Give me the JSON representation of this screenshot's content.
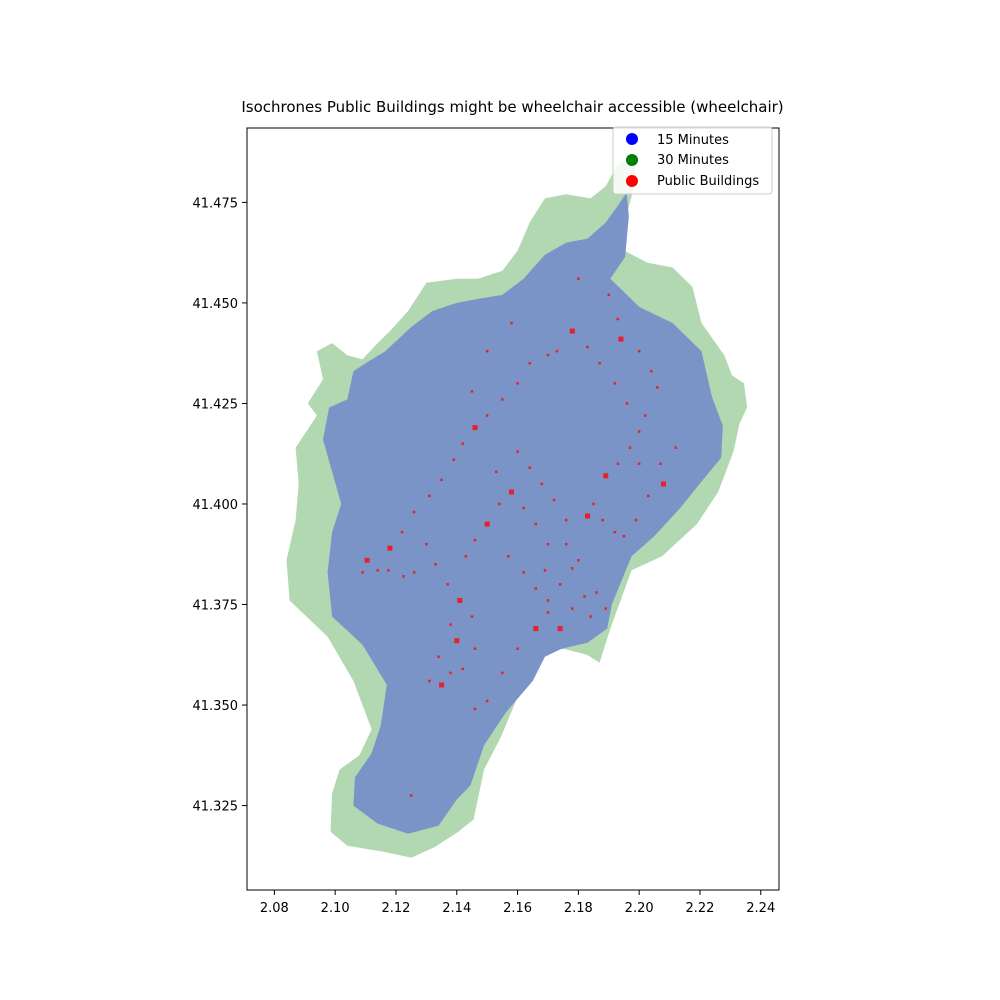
{
  "chart_data": {
    "type": "map",
    "title": "Isochrones Public Buildings might be wheelchair accessible (wheelchair)",
    "xlim": [
      2.071,
      2.246
    ],
    "ylim": [
      41.304,
      41.4935
    ],
    "xticks": [
      2.08,
      2.1,
      2.12,
      2.14,
      2.16,
      2.18,
      2.2,
      2.22,
      2.24
    ],
    "xtick_labels": [
      "2.08",
      "2.10",
      "2.12",
      "2.14",
      "2.16",
      "2.18",
      "2.20",
      "2.22",
      "2.24"
    ],
    "yticks": [
      41.325,
      41.35,
      41.375,
      41.4,
      41.425,
      41.45,
      41.475
    ],
    "ytick_labels": [
      "41.325",
      "41.350",
      "41.375",
      "41.400",
      "41.425",
      "41.450",
      "41.475"
    ],
    "grid": false,
    "legend_position": "upper-right",
    "legend": [
      {
        "label": "15 Minutes",
        "color": "#0000ff"
      },
      {
        "label": "30 Minutes",
        "color": "#008000"
      },
      {
        "label": "Public Buildings",
        "color": "#ff0000"
      }
    ],
    "isochrone_30": {
      "name": "30 Minutes",
      "color": "#b2d8b2",
      "polygon": [
        [
          2.1927,
          41.4842
        ],
        [
          2.1956,
          41.4858
        ],
        [
          2.1985,
          41.4845
        ],
        [
          2.1986,
          41.4795
        ],
        [
          2.1956,
          41.4712
        ],
        [
          2.1946,
          41.4632
        ],
        [
          2.2027,
          41.46
        ],
        [
          2.211,
          41.4588
        ],
        [
          2.2175,
          41.454
        ],
        [
          2.2205,
          41.445
        ],
        [
          2.228,
          41.437
        ],
        [
          2.2305,
          41.432
        ],
        [
          2.2345,
          41.43
        ],
        [
          2.2355,
          41.424
        ],
        [
          2.233,
          41.42
        ],
        [
          2.231,
          41.413
        ],
        [
          2.226,
          41.403
        ],
        [
          2.219,
          41.395
        ],
        [
          2.2075,
          41.387
        ],
        [
          2.1975,
          41.3835
        ],
        [
          2.1905,
          41.369
        ],
        [
          2.187,
          41.3605
        ],
        [
          2.1828,
          41.3625
        ],
        [
          2.175,
          41.364
        ],
        [
          2.169,
          41.363
        ],
        [
          2.16,
          41.352
        ],
        [
          2.1545,
          41.342
        ],
        [
          2.149,
          41.334
        ],
        [
          2.1455,
          41.3215
        ],
        [
          2.1405,
          41.3185
        ],
        [
          2.133,
          41.3148
        ],
        [
          2.125,
          41.312
        ],
        [
          2.116,
          41.3135
        ],
        [
          2.104,
          41.315
        ],
        [
          2.0985,
          41.3185
        ],
        [
          2.099,
          41.328
        ],
        [
          2.1015,
          41.334
        ],
        [
          2.108,
          41.3375
        ],
        [
          2.112,
          41.344
        ],
        [
          2.106,
          41.356
        ],
        [
          2.0975,
          41.367
        ],
        [
          2.085,
          41.376
        ],
        [
          2.084,
          41.386
        ],
        [
          2.087,
          41.396
        ],
        [
          2.088,
          41.405
        ],
        [
          2.087,
          41.414
        ],
        [
          2.094,
          41.422
        ],
        [
          2.091,
          41.425
        ],
        [
          2.096,
          41.431
        ],
        [
          2.094,
          41.438
        ],
        [
          2.099,
          41.44
        ],
        [
          2.104,
          41.437
        ],
        [
          2.109,
          41.436
        ],
        [
          2.114,
          41.44
        ],
        [
          2.118,
          41.443
        ],
        [
          2.124,
          41.448
        ],
        [
          2.13,
          41.455
        ],
        [
          2.14,
          41.456
        ],
        [
          2.147,
          41.456
        ],
        [
          2.155,
          41.458
        ],
        [
          2.16,
          41.463
        ],
        [
          2.164,
          41.47
        ],
        [
          2.169,
          41.476
        ],
        [
          2.176,
          41.477
        ],
        [
          2.184,
          41.476
        ],
        [
          2.189,
          41.479
        ],
        [
          2.1927,
          41.4842
        ]
      ]
    },
    "isochrone_15": {
      "name": "15 Minutes",
      "color": "#7b94c8",
      "polygon": [
        [
          2.1933,
          41.4745
        ],
        [
          2.1959,
          41.4775
        ],
        [
          2.1966,
          41.4715
        ],
        [
          2.1954,
          41.4615
        ],
        [
          2.1905,
          41.456
        ],
        [
          2.196,
          41.452
        ],
        [
          2.2,
          41.449
        ],
        [
          2.211,
          41.445
        ],
        [
          2.2205,
          41.438
        ],
        [
          2.224,
          41.4265
        ],
        [
          2.2275,
          41.4195
        ],
        [
          2.227,
          41.4115
        ],
        [
          2.221,
          41.406
        ],
        [
          2.2135,
          41.399
        ],
        [
          2.205,
          41.392
        ],
        [
          2.1975,
          41.387
        ],
        [
          2.191,
          41.375
        ],
        [
          2.1895,
          41.369
        ],
        [
          2.183,
          41.3655
        ],
        [
          2.1745,
          41.364
        ],
        [
          2.169,
          41.362
        ],
        [
          2.165,
          41.356
        ],
        [
          2.156,
          41.348
        ],
        [
          2.149,
          41.34
        ],
        [
          2.1445,
          41.33
        ],
        [
          2.14,
          41.3265
        ],
        [
          2.134,
          41.32
        ],
        [
          2.124,
          41.318
        ],
        [
          2.114,
          41.3205
        ],
        [
          2.106,
          41.325
        ],
        [
          2.1065,
          41.332
        ],
        [
          2.112,
          41.338
        ],
        [
          2.115,
          41.345
        ],
        [
          2.117,
          41.355
        ],
        [
          2.109,
          41.365
        ],
        [
          2.099,
          41.372
        ],
        [
          2.0975,
          41.383
        ],
        [
          2.099,
          41.393
        ],
        [
          2.102,
          41.4
        ],
        [
          2.099,
          41.408
        ],
        [
          2.096,
          41.416
        ],
        [
          2.098,
          41.424
        ],
        [
          2.104,
          41.426
        ],
        [
          2.106,
          41.433
        ],
        [
          2.11,
          41.435
        ],
        [
          2.1165,
          41.438
        ],
        [
          2.125,
          41.444
        ],
        [
          2.132,
          41.448
        ],
        [
          2.14,
          41.45
        ],
        [
          2.147,
          41.451
        ],
        [
          2.155,
          41.452
        ],
        [
          2.162,
          41.456
        ],
        [
          2.169,
          41.462
        ],
        [
          2.176,
          41.465
        ],
        [
          2.183,
          41.466
        ],
        [
          2.189,
          41.47
        ],
        [
          2.1933,
          41.4745
        ]
      ]
    },
    "public_buildings": {
      "name": "Public Buildings",
      "color": "#e8202a",
      "points": [
        [
          2.1105,
          41.386
        ],
        [
          2.109,
          41.383
        ],
        [
          2.114,
          41.3835
        ],
        [
          2.1175,
          41.3835
        ],
        [
          2.1225,
          41.382
        ],
        [
          2.126,
          41.383
        ],
        [
          2.131,
          41.356
        ],
        [
          2.135,
          41.355
        ],
        [
          2.138,
          41.358
        ],
        [
          2.142,
          41.359
        ],
        [
          2.146,
          41.349
        ],
        [
          2.15,
          41.351
        ],
        [
          2.155,
          41.358
        ],
        [
          2.16,
          41.364
        ],
        [
          2.166,
          41.369
        ],
        [
          2.17,
          41.376
        ],
        [
          2.174,
          41.38
        ],
        [
          2.178,
          41.384
        ],
        [
          2.18,
          41.386
        ],
        [
          2.176,
          41.39
        ],
        [
          2.169,
          41.3835
        ],
        [
          2.183,
          41.397
        ],
        [
          2.185,
          41.4
        ],
        [
          2.188,
          41.396
        ],
        [
          2.192,
          41.393
        ],
        [
          2.195,
          41.392
        ],
        [
          2.199,
          41.396
        ],
        [
          2.203,
          41.402
        ],
        [
          2.208,
          41.405
        ],
        [
          2.212,
          41.414
        ],
        [
          2.202,
          41.422
        ],
        [
          2.196,
          41.425
        ],
        [
          2.192,
          41.43
        ],
        [
          2.187,
          41.435
        ],
        [
          2.183,
          41.439
        ],
        [
          2.178,
          41.443
        ],
        [
          2.173,
          41.438
        ],
        [
          2.17,
          41.437
        ],
        [
          2.164,
          41.435
        ],
        [
          2.16,
          41.43
        ],
        [
          2.155,
          41.426
        ],
        [
          2.15,
          41.422
        ],
        [
          2.146,
          41.419
        ],
        [
          2.142,
          41.415
        ],
        [
          2.139,
          41.411
        ],
        [
          2.135,
          41.406
        ],
        [
          2.131,
          41.402
        ],
        [
          2.126,
          41.398
        ],
        [
          2.122,
          41.393
        ],
        [
          2.118,
          41.389
        ],
        [
          2.16,
          41.413
        ],
        [
          2.164,
          41.409
        ],
        [
          2.168,
          41.405
        ],
        [
          2.172,
          41.401
        ],
        [
          2.176,
          41.396
        ],
        [
          2.154,
          41.4
        ],
        [
          2.15,
          41.395
        ],
        [
          2.146,
          41.391
        ],
        [
          2.143,
          41.387
        ],
        [
          2.157,
          41.387
        ],
        [
          2.162,
          41.383
        ],
        [
          2.166,
          41.379
        ],
        [
          2.17,
          41.373
        ],
        [
          2.174,
          41.369
        ],
        [
          2.178,
          41.374
        ],
        [
          2.182,
          41.377
        ],
        [
          2.186,
          41.378
        ],
        [
          2.189,
          41.374
        ],
        [
          2.184,
          41.372
        ],
        [
          2.146,
          41.364
        ],
        [
          2.14,
          41.366
        ],
        [
          2.138,
          41.37
        ],
        [
          2.134,
          41.362
        ],
        [
          2.125,
          41.3275
        ],
        [
          2.18,
          41.456
        ],
        [
          2.19,
          41.452
        ],
        [
          2.193,
          41.446
        ],
        [
          2.194,
          41.441
        ],
        [
          2.2,
          41.438
        ],
        [
          2.204,
          41.433
        ],
        [
          2.206,
          41.429
        ],
        [
          2.2,
          41.418
        ],
        [
          2.197,
          41.414
        ],
        [
          2.193,
          41.41
        ],
        [
          2.189,
          41.407
        ],
        [
          2.207,
          41.41
        ],
        [
          2.2,
          41.41
        ],
        [
          2.158,
          41.445
        ],
        [
          2.15,
          41.438
        ],
        [
          2.145,
          41.428
        ],
        [
          2.153,
          41.408
        ],
        [
          2.158,
          41.403
        ],
        [
          2.162,
          41.399
        ],
        [
          2.166,
          41.395
        ],
        [
          2.17,
          41.39
        ],
        [
          2.13,
          41.39
        ],
        [
          2.133,
          41.385
        ],
        [
          2.137,
          41.38
        ],
        [
          2.141,
          41.376
        ],
        [
          2.145,
          41.372
        ]
      ]
    }
  }
}
